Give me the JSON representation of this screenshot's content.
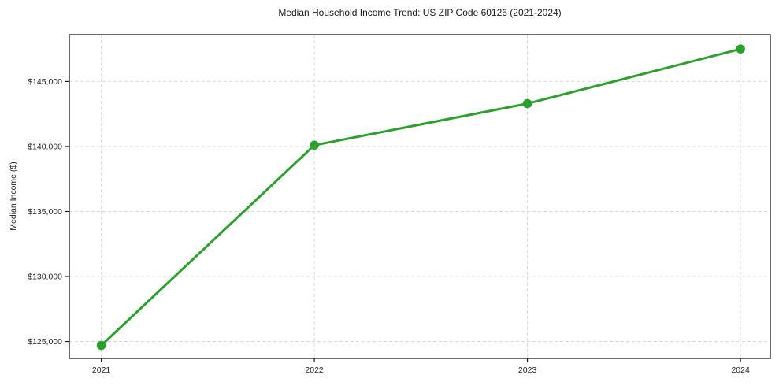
{
  "chart_data": {
    "type": "line",
    "title": "Median Household Income Trend: US ZIP Code 60126 (2021-2024)",
    "xlabel": "",
    "ylabel": "Median Income ($)",
    "x": [
      2021,
      2022,
      2023,
      2024
    ],
    "x_tick_labels": [
      "2021",
      "2022",
      "2023",
      "2024"
    ],
    "y_ticks": [
      125000,
      130000,
      135000,
      140000,
      145000
    ],
    "y_tick_labels": [
      "$125,000",
      "$130,000",
      "$135,000",
      "$140,000",
      "$145,000"
    ],
    "series": [
      {
        "name": "Median Household Income",
        "values": [
          124700,
          140100,
          143300,
          147500
        ],
        "color": "#2ca02c",
        "marker": "circle"
      }
    ],
    "xlim": [
      2020.85,
      2024.14
    ],
    "ylim": [
      123700,
      148600
    ],
    "grid": true,
    "grid_style": "dashed",
    "legend": "none"
  },
  "colors": {
    "line": "#2ca02c",
    "grid": "#d9d9d9",
    "axis": "#1a1a1a",
    "text": "#262626",
    "background": "#ffffff"
  }
}
